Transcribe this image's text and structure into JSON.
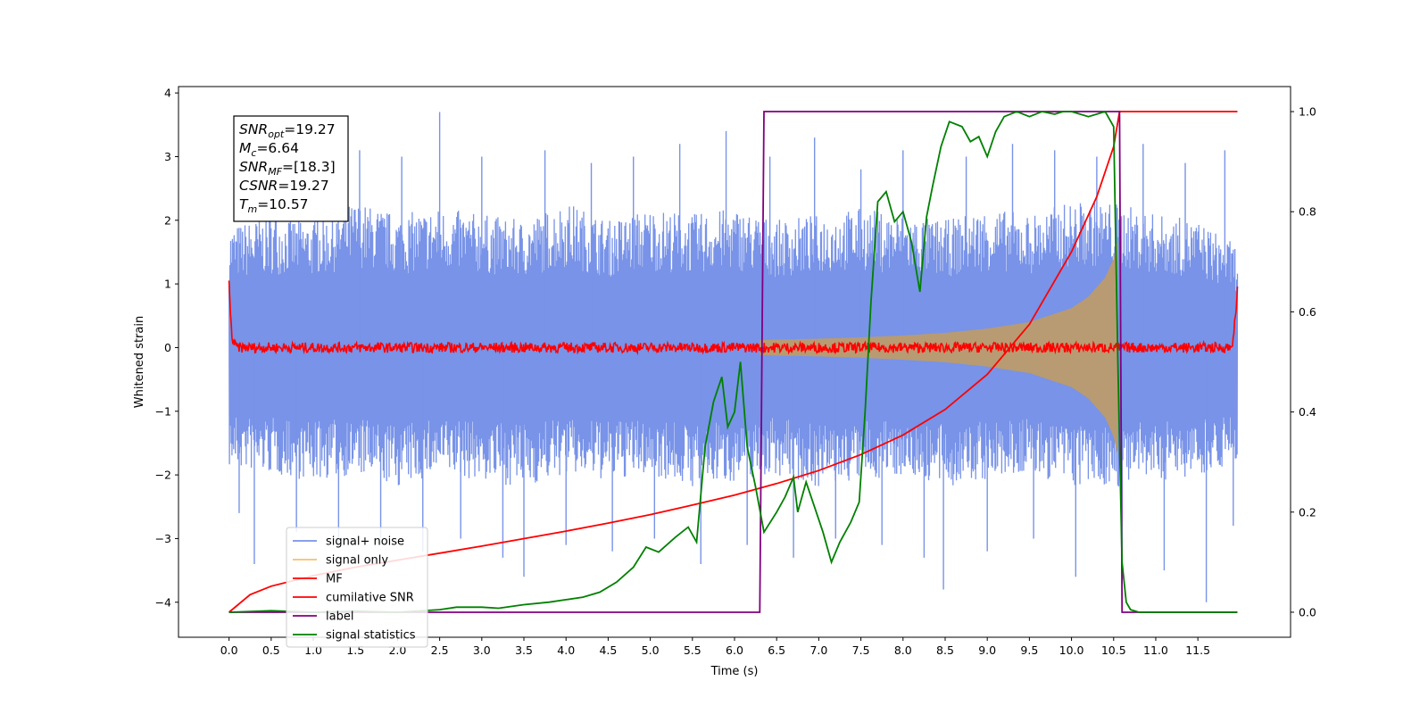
{
  "chart_data": {
    "type": "line",
    "xlabel": "Time (s)",
    "ylabel": "Whitened strain",
    "xlim": [
      -0.6,
      12.6
    ],
    "ylim": [
      -4.55,
      4.1
    ],
    "y2lim": [
      -0.05,
      1.05
    ],
    "xticks": [
      0.0,
      0.5,
      1.0,
      1.5,
      2.0,
      2.5,
      3.0,
      3.5,
      4.0,
      4.5,
      5.0,
      5.5,
      6.0,
      6.5,
      7.0,
      7.5,
      8.0,
      8.5,
      9.0,
      9.5,
      10.0,
      10.5,
      11.0,
      11.5
    ],
    "xtick_labels": [
      "0.0",
      "0.5",
      "1.0",
      "1.5",
      "2.0",
      "2.5",
      "3.0",
      "3.5",
      "4.0",
      "4.5",
      "5.0",
      "5.5",
      "6.0",
      "6.5",
      "7.0",
      "7.5",
      "8.0",
      "8.5",
      "9.0",
      "9.5",
      "10.0",
      "10.5",
      "11.0",
      "11.5"
    ],
    "yticks": [
      4,
      3,
      2,
      1,
      0,
      -1,
      -2,
      -3,
      -4
    ],
    "ytick_labels": [
      "4",
      "3",
      "2",
      "1",
      "0",
      "−1",
      "−2",
      "−3",
      "−4"
    ],
    "y2ticks": [
      1.0,
      0.8,
      0.6,
      0.4,
      0.2,
      0.0
    ],
    "y2tick_labels": [
      "1.0",
      "0.8",
      "0.6",
      "0.4",
      "0.2",
      "0.0"
    ],
    "legend_position": "lower-left",
    "series": [
      {
        "name": "signal+ noise",
        "color": "#7893e8",
        "axis": "left",
        "envelope": {
          "x": [
            0.0,
            0.5,
            1.0,
            1.5,
            2.0,
            2.5,
            3.0,
            3.5,
            4.0,
            4.5,
            5.0,
            5.5,
            6.0,
            6.5,
            7.0,
            7.5,
            8.0,
            8.5,
            9.0,
            9.5,
            10.0,
            10.5,
            11.0,
            11.5,
            11.97
          ],
          "upper": [
            1.9,
            2.1,
            2.0,
            2.3,
            2.1,
            2.2,
            2.1,
            2.0,
            2.3,
            2.0,
            2.2,
            2.1,
            2.2,
            2.0,
            2.1,
            2.2,
            2.1,
            2.0,
            2.2,
            2.1,
            2.3,
            2.3,
            2.1,
            2.0,
            1.6
          ],
          "lower": [
            -1.9,
            -2.0,
            -2.1,
            -2.0,
            -2.2,
            -2.0,
            -2.1,
            -2.2,
            -2.0,
            -2.1,
            -2.0,
            -2.2,
            -2.1,
            -2.0,
            -2.2,
            -2.1,
            -2.0,
            -2.2,
            -2.1,
            -2.0,
            -2.2,
            -2.2,
            -2.1,
            -2.0,
            -1.8
          ]
        },
        "spikes": [
          {
            "x": 0.12,
            "y": -2.6
          },
          {
            "x": 0.3,
            "y": -3.4
          },
          {
            "x": 0.55,
            "y": 2.8
          },
          {
            "x": 0.8,
            "y": -2.9
          },
          {
            "x": 1.05,
            "y": 2.9
          },
          {
            "x": 1.3,
            "y": -3.1
          },
          {
            "x": 1.55,
            "y": 3.1
          },
          {
            "x": 1.8,
            "y": -3.0
          },
          {
            "x": 2.05,
            "y": 3.0
          },
          {
            "x": 2.3,
            "y": -3.2
          },
          {
            "x": 2.5,
            "y": 3.7
          },
          {
            "x": 2.75,
            "y": -3.0
          },
          {
            "x": 3.0,
            "y": 3.0
          },
          {
            "x": 3.25,
            "y": -3.3
          },
          {
            "x": 3.5,
            "y": -3.6
          },
          {
            "x": 3.75,
            "y": 3.1
          },
          {
            "x": 4.0,
            "y": -3.1
          },
          {
            "x": 4.3,
            "y": 2.9
          },
          {
            "x": 4.55,
            "y": -3.2
          },
          {
            "x": 4.8,
            "y": 3.0
          },
          {
            "x": 5.05,
            "y": -3.0
          },
          {
            "x": 5.35,
            "y": 3.2
          },
          {
            "x": 5.6,
            "y": -3.4
          },
          {
            "x": 5.9,
            "y": 3.4
          },
          {
            "x": 6.15,
            "y": -3.1
          },
          {
            "x": 6.42,
            "y": 3.0
          },
          {
            "x": 6.7,
            "y": -3.3
          },
          {
            "x": 6.95,
            "y": 3.3
          },
          {
            "x": 7.2,
            "y": -3.0
          },
          {
            "x": 7.5,
            "y": 2.8
          },
          {
            "x": 7.75,
            "y": -3.1
          },
          {
            "x": 8.0,
            "y": 3.1
          },
          {
            "x": 8.25,
            "y": -3.3
          },
          {
            "x": 8.48,
            "y": -3.8
          },
          {
            "x": 8.75,
            "y": 3.0
          },
          {
            "x": 9.0,
            "y": -3.2
          },
          {
            "x": 9.3,
            "y": 3.2
          },
          {
            "x": 9.55,
            "y": -3.0
          },
          {
            "x": 9.8,
            "y": 3.1
          },
          {
            "x": 10.05,
            "y": -3.6
          },
          {
            "x": 10.3,
            "y": 3.0
          },
          {
            "x": 10.6,
            "y": -4.1
          },
          {
            "x": 10.85,
            "y": 3.2
          },
          {
            "x": 11.1,
            "y": -3.5
          },
          {
            "x": 11.35,
            "y": 2.9
          },
          {
            "x": 11.6,
            "y": -4.0
          },
          {
            "x": 11.82,
            "y": 3.1
          },
          {
            "x": 11.92,
            "y": -2.8
          }
        ]
      },
      {
        "name": "signal only",
        "color": "#f5c06a",
        "axis": "left",
        "envelope": {
          "x": [
            6.3,
            7.0,
            7.5,
            8.0,
            8.5,
            9.0,
            9.5,
            10.0,
            10.2,
            10.4,
            10.5,
            10.55
          ],
          "amplitude": [
            0.12,
            0.14,
            0.16,
            0.19,
            0.23,
            0.3,
            0.4,
            0.62,
            0.8,
            1.1,
            1.4,
            1.7
          ]
        }
      },
      {
        "name": "MF",
        "color": "#ff0000",
        "axis": "left",
        "x": [
          0.0,
          0.03,
          0.06,
          0.1,
          11.9,
          11.95,
          11.97
        ],
        "y": [
          1.0,
          0.2,
          0.05,
          0.0,
          0.0,
          0.5,
          0.9
        ]
      },
      {
        "name": "cumilative SNR",
        "color": "#ff0000",
        "axis": "right",
        "x": [
          0.0,
          0.25,
          0.5,
          1.0,
          1.5,
          2.0,
          2.5,
          3.0,
          3.5,
          4.0,
          4.5,
          5.0,
          5.5,
          6.0,
          6.5,
          7.0,
          7.5,
          8.0,
          8.5,
          9.0,
          9.5,
          10.0,
          10.3,
          10.5,
          10.57,
          11.97
        ],
        "y": [
          0.0,
          0.035,
          0.052,
          0.073,
          0.09,
          0.104,
          0.118,
          0.132,
          0.147,
          0.162,
          0.178,
          0.195,
          0.214,
          0.234,
          0.257,
          0.283,
          0.315,
          0.354,
          0.405,
          0.475,
          0.575,
          0.72,
          0.83,
          0.93,
          1.0,
          1.0
        ]
      },
      {
        "name": "label",
        "color": "#800080",
        "axis": "right",
        "x": [
          0.0,
          6.3,
          6.35,
          10.57,
          10.6,
          11.97
        ],
        "y": [
          0.0,
          0.0,
          1.0,
          1.0,
          0.0,
          0.0
        ]
      },
      {
        "name": "signal statistics",
        "color": "#008000",
        "axis": "right",
        "x": [
          0.0,
          0.5,
          1.0,
          1.5,
          2.0,
          2.5,
          2.7,
          3.0,
          3.2,
          3.5,
          3.8,
          4.0,
          4.2,
          4.4,
          4.6,
          4.8,
          4.95,
          5.1,
          5.3,
          5.45,
          5.55,
          5.65,
          5.75,
          5.85,
          5.92,
          6.0,
          6.07,
          6.15,
          6.25,
          6.35,
          6.5,
          6.6,
          6.7,
          6.75,
          6.85,
          6.95,
          7.05,
          7.15,
          7.25,
          7.38,
          7.48,
          7.55,
          7.62,
          7.7,
          7.8,
          7.9,
          8.0,
          8.1,
          8.2,
          8.28,
          8.35,
          8.45,
          8.55,
          8.7,
          8.8,
          8.9,
          9.0,
          9.1,
          9.2,
          9.35,
          9.5,
          9.65,
          9.8,
          9.9,
          10.0,
          10.2,
          10.4,
          10.5,
          10.55,
          10.6,
          10.65,
          10.7,
          10.8,
          11.0,
          11.97
        ],
        "y": [
          0.0,
          0.003,
          0.0,
          0.002,
          0.0,
          0.005,
          0.01,
          0.01,
          0.008,
          0.015,
          0.02,
          0.025,
          0.03,
          0.04,
          0.06,
          0.09,
          0.13,
          0.12,
          0.15,
          0.17,
          0.14,
          0.33,
          0.42,
          0.47,
          0.37,
          0.4,
          0.5,
          0.33,
          0.25,
          0.16,
          0.2,
          0.23,
          0.27,
          0.2,
          0.26,
          0.21,
          0.16,
          0.1,
          0.14,
          0.18,
          0.22,
          0.4,
          0.62,
          0.82,
          0.84,
          0.78,
          0.8,
          0.74,
          0.64,
          0.79,
          0.85,
          0.93,
          0.98,
          0.97,
          0.94,
          0.95,
          0.91,
          0.96,
          0.99,
          1.0,
          0.99,
          1.0,
          0.995,
          1.0,
          1.0,
          0.99,
          1.0,
          0.97,
          0.5,
          0.1,
          0.02,
          0.005,
          0.0,
          0.0,
          0.0
        ]
      }
    ],
    "annotation": {
      "lines": [
        {
          "main": "SNR",
          "sub": "opt",
          "rest": "=19.27"
        },
        {
          "main": "M",
          "sub": "c",
          "rest": "=6.64"
        },
        {
          "main": "SNR",
          "sub": "MF",
          "rest": "=[18.3]"
        },
        {
          "main": "CSNR",
          "sub": "",
          "rest": "=19.27"
        },
        {
          "main": "T",
          "sub": "m",
          "rest": "=10.57"
        }
      ]
    }
  }
}
